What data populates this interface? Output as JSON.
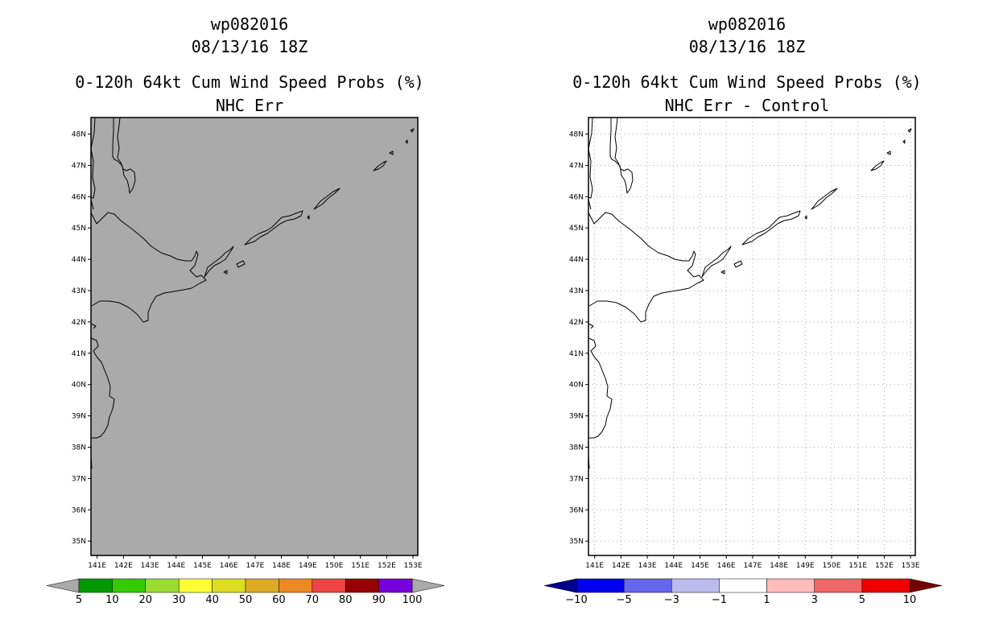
{
  "left": {
    "storm_id": "wp082016",
    "datetime": "08/13/16 18Z",
    "product": "0-120h 64kt Cum Wind Speed Probs (%)",
    "subtitle": "NHC Err",
    "colorbar": {
      "labels": [
        "5",
        "10",
        "20",
        "30",
        "40",
        "50",
        "60",
        "70",
        "80",
        "90",
        "100"
      ],
      "colors": [
        "#009900",
        "#33cc00",
        "#99dd33",
        "#ffff33",
        "#dddd22",
        "#ddaa22",
        "#ee8822",
        "#ee4444",
        "#990000",
        "#7700dd"
      ],
      "under_color": "#aaaaaa",
      "over_color": "#aaaaaa"
    }
  },
  "right": {
    "storm_id": "wp082016",
    "datetime": "08/13/16 18Z",
    "product": "0-120h 64kt Cum Wind Speed Probs (%)",
    "subtitle": "NHC Err - Control",
    "colorbar": {
      "labels": [
        "−10",
        "−5",
        "−3",
        "−1",
        "1",
        "3",
        "5",
        "10"
      ],
      "colors": [
        "#0000ee",
        "#6666ee",
        "#bbbbee",
        "#ffffff",
        "#ffbbbb",
        "#ee6666",
        "#ee0000"
      ],
      "under_color": "#000088",
      "over_color": "#770000"
    }
  },
  "axes": {
    "lat_labels": [
      "48N",
      "47N",
      "46N",
      "45N",
      "44N",
      "43N",
      "42N",
      "41N",
      "40N",
      "39N",
      "38N",
      "37N",
      "36N",
      "35N"
    ],
    "lon_labels": [
      "141E",
      "142E",
      "143E",
      "144E",
      "145E",
      "146E",
      "147E",
      "148E",
      "149E",
      "150E",
      "151E",
      "152E",
      "153E"
    ]
  },
  "colors": {
    "left_map_fill": "#aaaaaa",
    "right_map_fill": "#ffffff",
    "grid": "#aaaaaa"
  }
}
